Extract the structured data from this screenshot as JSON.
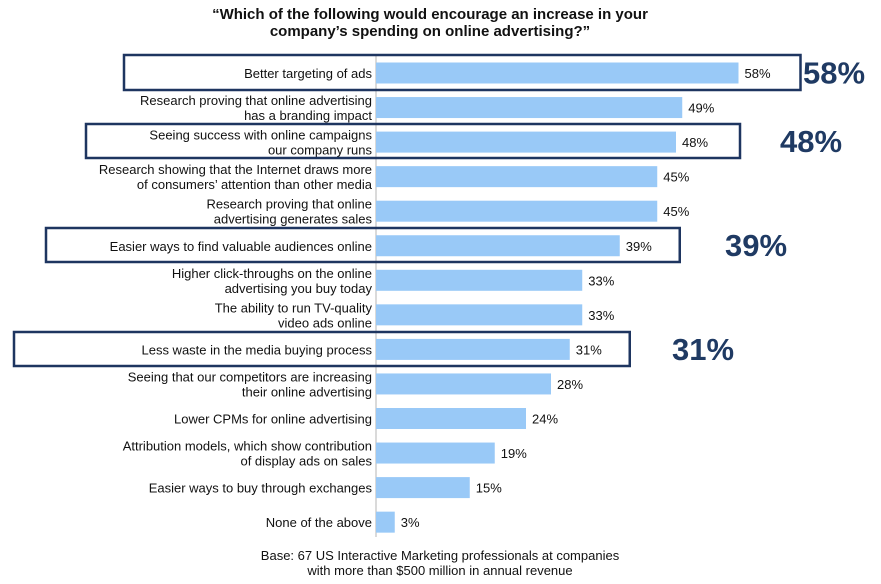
{
  "chart_data": {
    "type": "bar",
    "orientation": "horizontal",
    "title_lines": [
      "“Which of the following would encourage an increase in your",
      "company’s spending on online advertising?”"
    ],
    "categories": [
      [
        "Better targeting of ads"
      ],
      [
        "Research proving that online advertising",
        "has a branding impact"
      ],
      [
        "Seeing success with online campaigns",
        "our company runs"
      ],
      [
        "Research showing that the Internet draws more",
        "of consumers’ attention than other media"
      ],
      [
        "Research proving that online",
        "advertising generates sales"
      ],
      [
        "Easier ways to find valuable audiences online"
      ],
      [
        "Higher click-throughs on the online",
        "advertising you buy today"
      ],
      [
        "The ability to run TV-quality",
        "video ads online"
      ],
      [
        "Less waste in the media buying process"
      ],
      [
        "Seeing that our competitors are increasing",
        "their online advertising"
      ],
      [
        "Lower CPMs for online advertising"
      ],
      [
        "Attribution models, which show contribution",
        "of display ads on sales"
      ],
      [
        "Easier ways to buy through exchanges"
      ],
      [
        "None of the above"
      ]
    ],
    "values": [
      58,
      49,
      48,
      45,
      45,
      39,
      33,
      33,
      31,
      28,
      24,
      19,
      15,
      3
    ],
    "value_labels": [
      "58%",
      "49%",
      "48%",
      "45%",
      "45%",
      "39%",
      "33%",
      "33%",
      "31%",
      "28%",
      "24%",
      "19%",
      "15%",
      "3%"
    ],
    "highlights": [
      {
        "index": 0,
        "label": "58%"
      },
      {
        "index": 2,
        "label": "48%"
      },
      {
        "index": 5,
        "label": "39%"
      },
      {
        "index": 8,
        "label": "31%"
      }
    ],
    "bar_color": "#99c9f7",
    "highlight_box_color": "#1e3560",
    "highlight_text_color": "#1f3a63",
    "base_lines": [
      "Base: 67 US Interactive Marketing professionals at companies",
      "with more than $500 million in annual revenue"
    ]
  }
}
